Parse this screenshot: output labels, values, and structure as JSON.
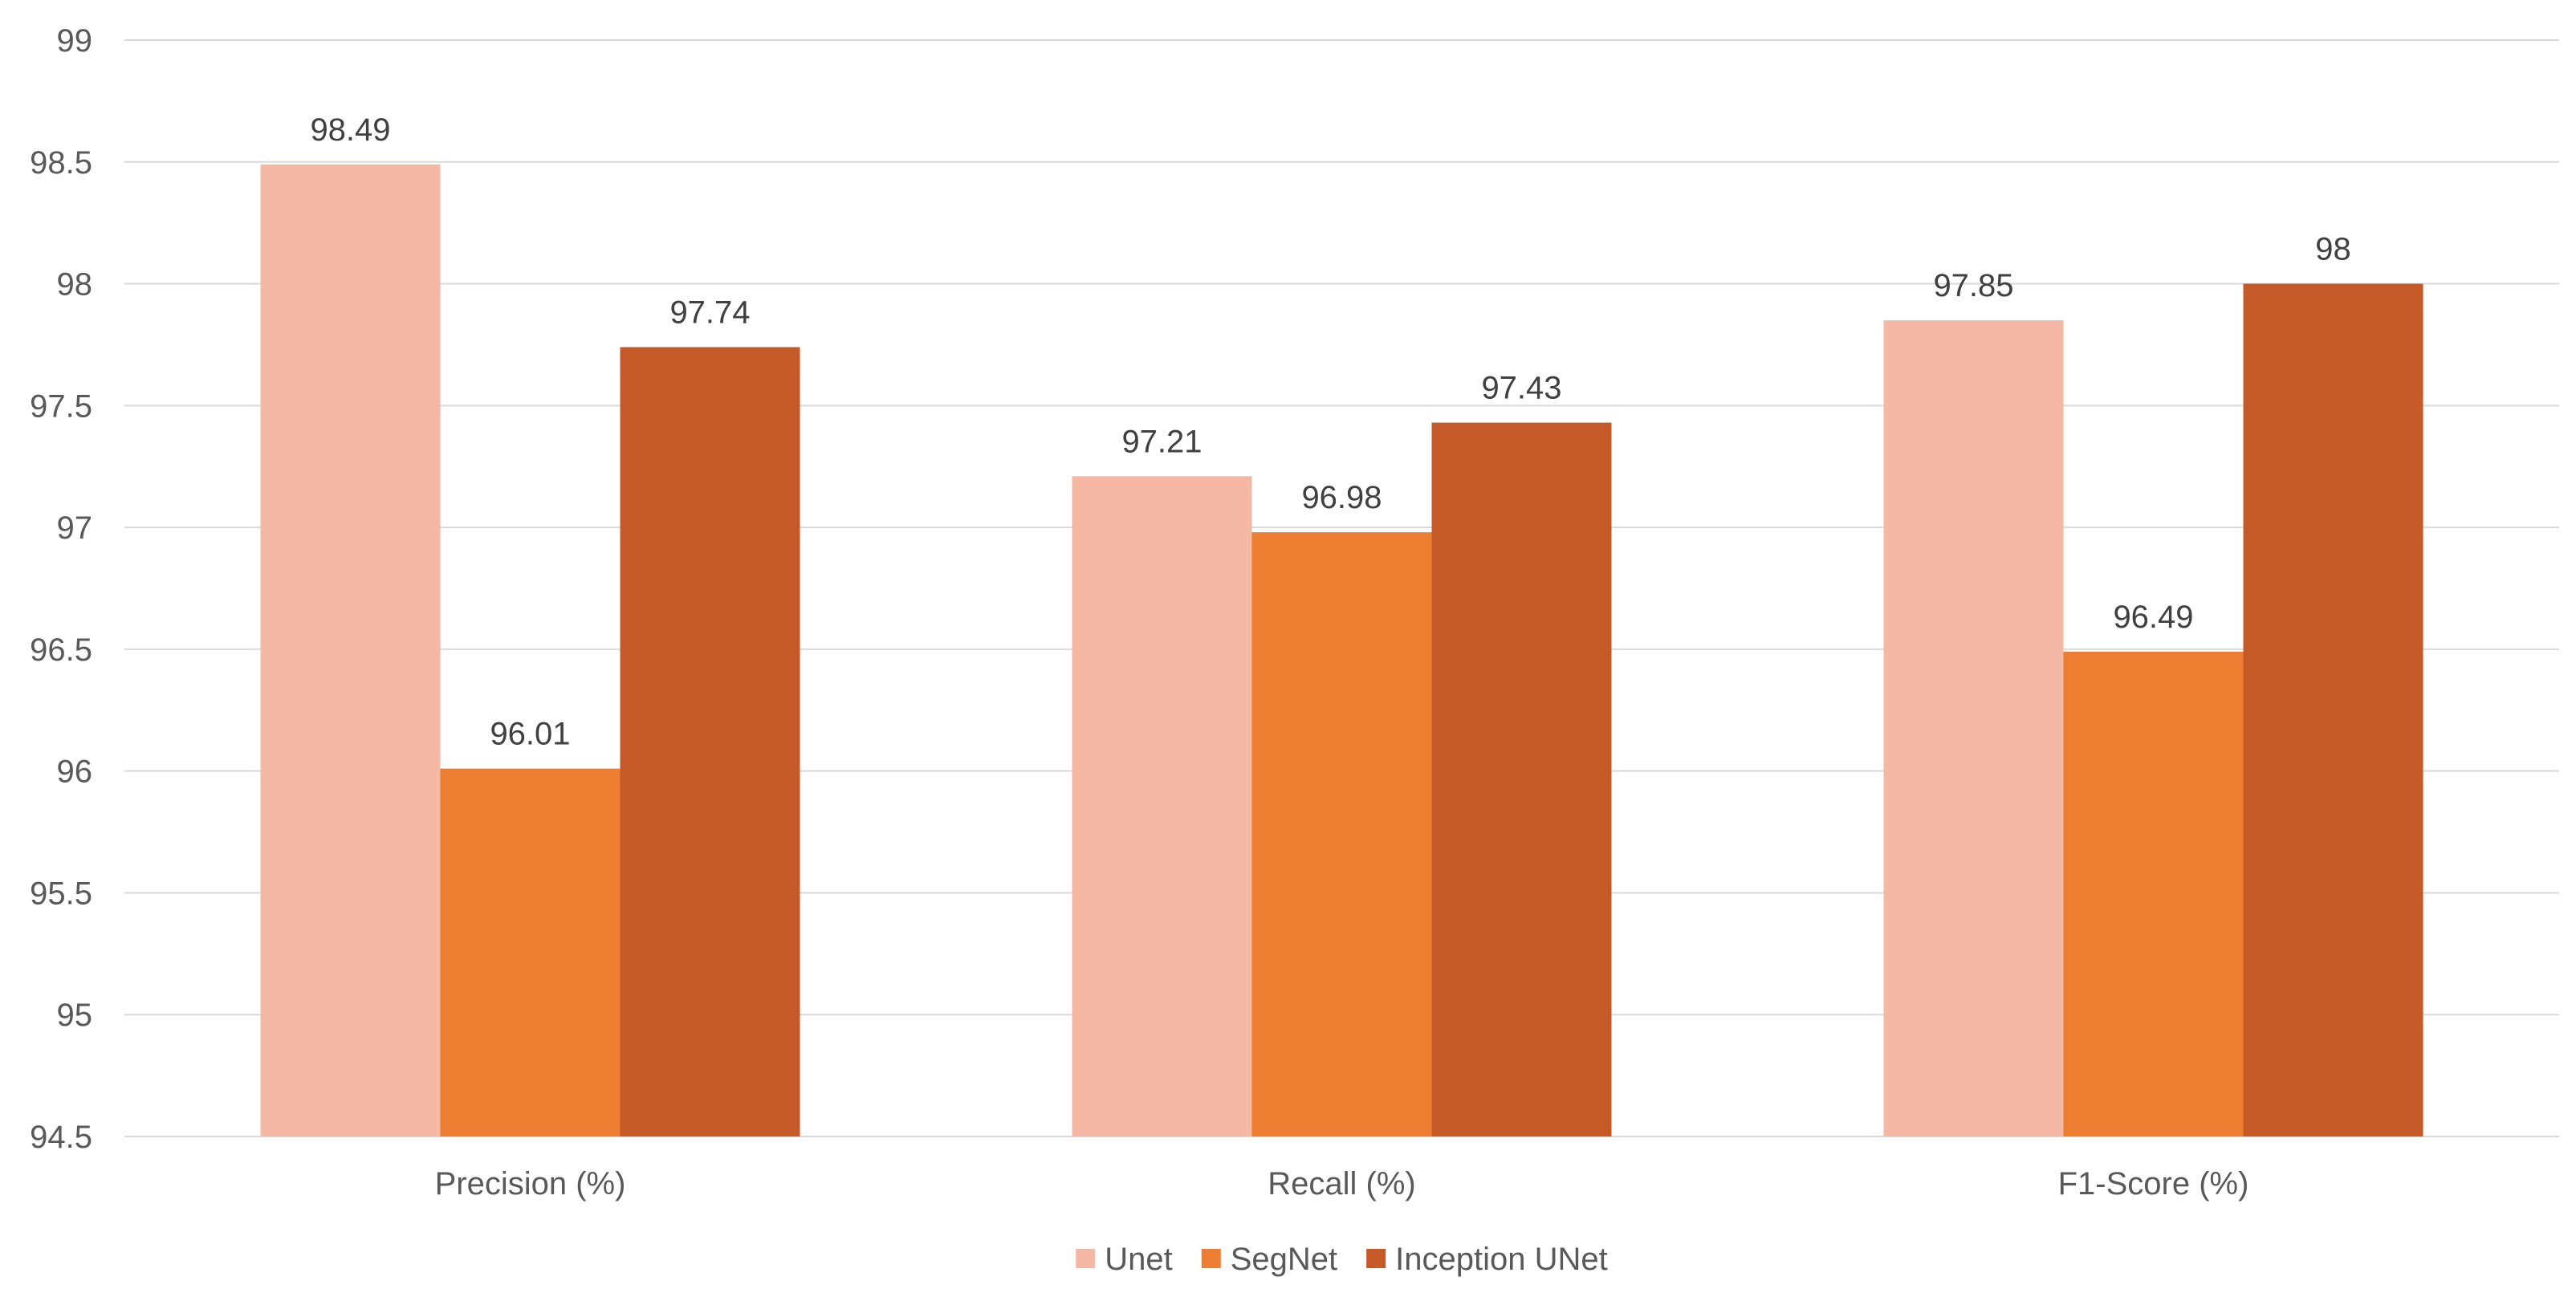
{
  "chart_data": {
    "type": "bar",
    "title": "",
    "xlabel": "",
    "ylabel": "",
    "ylim": [
      94.5,
      99
    ],
    "yticks": [
      "94.5",
      "95",
      "95.5",
      "96",
      "96.5",
      "97",
      "97.5",
      "98",
      "98.5",
      "99"
    ],
    "categories": [
      "Precision (%)",
      "Recall (%)",
      "F1-Score (%)"
    ],
    "series": [
      {
        "name": "Unet",
        "color": "#f4b8a5",
        "values": [
          98.49,
          97.21,
          97.85
        ],
        "labels": [
          "98.49",
          "97.21",
          "97.85"
        ]
      },
      {
        "name": "SegNet",
        "color": "#ed7d31",
        "values": [
          96.01,
          96.98,
          96.49
        ],
        "labels": [
          "96.01",
          "96.98",
          "96.49"
        ]
      },
      {
        "name": "Inception UNet",
        "color": "#c55a28",
        "values": [
          97.74,
          97.43,
          98
        ],
        "labels": [
          "97.74",
          "97.43",
          "98"
        ]
      }
    ],
    "grid": true,
    "legend_position": "bottom-center"
  }
}
